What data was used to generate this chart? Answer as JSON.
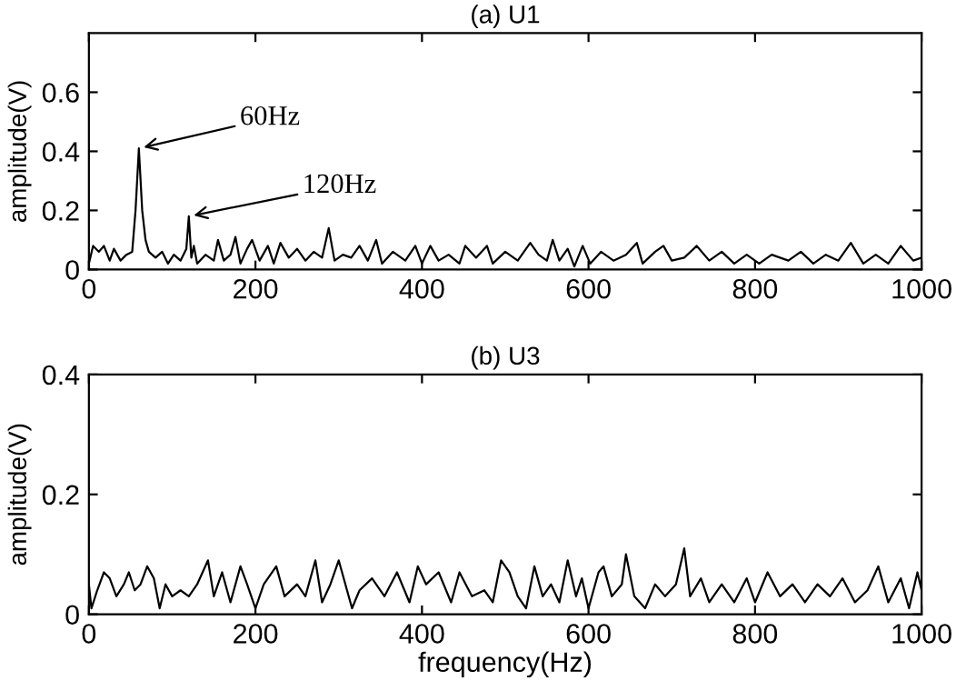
{
  "chart_data": [
    {
      "type": "line",
      "title": "(a) U1",
      "ylabel": "amplitude(V)",
      "xlim": [
        0,
        1000
      ],
      "xticks": [
        0,
        200,
        400,
        600,
        800,
        1000
      ],
      "ylim": [
        0,
        0.8
      ],
      "yticks": [
        0,
        0.2,
        0.4,
        0.6
      ],
      "grid": false,
      "legend": false,
      "marker": "none",
      "line_style": "solid",
      "annotations": [
        {
          "text": "60Hz",
          "x": 60,
          "y": 0.41
        },
        {
          "text": "120Hz",
          "x": 120,
          "y": 0.18
        }
      ],
      "series": [
        {
          "color": "#000000",
          "x": [
            0,
            5,
            12,
            18,
            25,
            30,
            38,
            45,
            52,
            56,
            60,
            64,
            68,
            72,
            80,
            88,
            95,
            102,
            110,
            117,
            120,
            123,
            126,
            130,
            140,
            150,
            155,
            162,
            170,
            176,
            182,
            190,
            196,
            205,
            215,
            222,
            230,
            240,
            250,
            260,
            270,
            280,
            288,
            295,
            305,
            315,
            325,
            335,
            345,
            352,
            365,
            380,
            392,
            400,
            410,
            420,
            432,
            445,
            452,
            465,
            478,
            485,
            500,
            515,
            530,
            540,
            550,
            557,
            565,
            575,
            583,
            593,
            602,
            615,
            630,
            645,
            658,
            665,
            680,
            690,
            700,
            715,
            730,
            745,
            760,
            775,
            790,
            805,
            820,
            840,
            855,
            870,
            885,
            900,
            915,
            930,
            945,
            960,
            975,
            990,
            1000
          ],
          "values": [
            0.02,
            0.08,
            0.06,
            0.08,
            0.03,
            0.07,
            0.03,
            0.05,
            0.06,
            0.2,
            0.41,
            0.2,
            0.1,
            0.06,
            0.04,
            0.06,
            0.02,
            0.05,
            0.03,
            0.07,
            0.18,
            0.04,
            0.08,
            0.02,
            0.05,
            0.03,
            0.1,
            0.03,
            0.05,
            0.11,
            0.02,
            0.07,
            0.1,
            0.03,
            0.08,
            0.02,
            0.09,
            0.04,
            0.07,
            0.03,
            0.06,
            0.04,
            0.14,
            0.03,
            0.05,
            0.04,
            0.08,
            0.03,
            0.1,
            0.02,
            0.06,
            0.03,
            0.08,
            0.02,
            0.08,
            0.03,
            0.05,
            0.02,
            0.08,
            0.04,
            0.08,
            0.02,
            0.06,
            0.03,
            0.09,
            0.05,
            0.03,
            0.1,
            0.03,
            0.07,
            0.01,
            0.08,
            0.02,
            0.06,
            0.03,
            0.05,
            0.09,
            0.02,
            0.06,
            0.08,
            0.03,
            0.04,
            0.08,
            0.03,
            0.06,
            0.02,
            0.05,
            0.02,
            0.05,
            0.03,
            0.06,
            0.02,
            0.05,
            0.03,
            0.09,
            0.02,
            0.05,
            0.02,
            0.08,
            0.03,
            0.04
          ]
        }
      ]
    },
    {
      "type": "line",
      "title": "(b) U3",
      "xlabel": "frequency(Hz)",
      "ylabel": "amplitude(V)",
      "xlim": [
        0,
        1000
      ],
      "xticks": [
        0,
        200,
        400,
        600,
        800,
        1000
      ],
      "ylim": [
        0,
        0.4
      ],
      "yticks": [
        0,
        0.2,
        0.4
      ],
      "grid": false,
      "legend": false,
      "marker": "none",
      "line_style": "solid",
      "series": [
        {
          "color": "#000000",
          "x": [
            0,
            3,
            10,
            18,
            25,
            33,
            42,
            48,
            55,
            62,
            70,
            78,
            85,
            92,
            100,
            110,
            120,
            130,
            143,
            150,
            160,
            170,
            182,
            190,
            200,
            210,
            225,
            235,
            250,
            260,
            272,
            280,
            290,
            300,
            310,
            316,
            325,
            340,
            355,
            370,
            385,
            395,
            405,
            420,
            435,
            445,
            460,
            475,
            485,
            495,
            505,
            515,
            525,
            535,
            545,
            555,
            565,
            575,
            585,
            592,
            600,
            612,
            618,
            628,
            640,
            645,
            655,
            668,
            680,
            692,
            705,
            715,
            722,
            735,
            745,
            760,
            775,
            790,
            800,
            815,
            830,
            845,
            860,
            875,
            890,
            905,
            920,
            935,
            948,
            960,
            975,
            985,
            995,
            1000
          ],
          "values": [
            0.05,
            0.01,
            0.04,
            0.07,
            0.06,
            0.03,
            0.05,
            0.07,
            0.04,
            0.05,
            0.08,
            0.06,
            0.01,
            0.05,
            0.03,
            0.04,
            0.03,
            0.05,
            0.09,
            0.03,
            0.07,
            0.02,
            0.08,
            0.05,
            0.01,
            0.05,
            0.08,
            0.03,
            0.05,
            0.03,
            0.09,
            0.02,
            0.05,
            0.09,
            0.04,
            0.01,
            0.04,
            0.06,
            0.03,
            0.07,
            0.02,
            0.08,
            0.05,
            0.07,
            0.02,
            0.07,
            0.03,
            0.04,
            0.02,
            0.09,
            0.07,
            0.03,
            0.01,
            0.08,
            0.03,
            0.05,
            0.02,
            0.09,
            0.03,
            0.06,
            0.01,
            0.07,
            0.08,
            0.03,
            0.05,
            0.1,
            0.03,
            0.01,
            0.05,
            0.03,
            0.05,
            0.11,
            0.03,
            0.06,
            0.02,
            0.05,
            0.02,
            0.06,
            0.02,
            0.07,
            0.03,
            0.05,
            0.02,
            0.05,
            0.03,
            0.06,
            0.02,
            0.04,
            0.08,
            0.02,
            0.06,
            0.01,
            0.07,
            0.04
          ]
        }
      ]
    }
  ]
}
